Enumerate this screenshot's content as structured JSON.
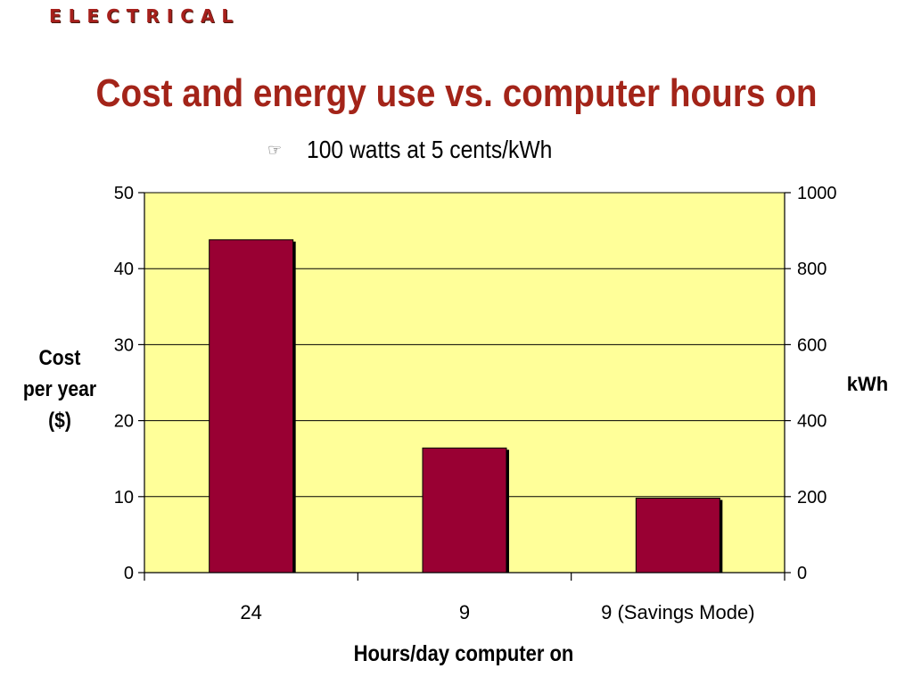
{
  "slide": {
    "section_tag": "ELECTRICAL",
    "title": "Cost and energy use vs. computer hours on",
    "bullet_icon": "pointing-hand-icon",
    "bullet_text": "100 watts at 5 cents/kWh"
  },
  "chart_data": {
    "type": "bar",
    "title": "",
    "categories": [
      "24",
      "9",
      "9 (Savings Mode)"
    ],
    "series": [
      {
        "values": [
          43.8,
          16.4,
          9.8
        ],
        "color": "#990033"
      }
    ],
    "xlabel": "Hours/day computer on",
    "ylabel": "Cost per year ($)",
    "ylabel_lines": [
      "Cost",
      "per year",
      "($)"
    ],
    "y2label": "kWh",
    "ylim": [
      0,
      50
    ],
    "y2lim": [
      0,
      1000
    ],
    "yticks": [
      "0",
      "10",
      "20",
      "30",
      "40",
      "50"
    ],
    "y2ticks": [
      "0",
      "200",
      "400",
      "600",
      "800",
      "1000"
    ],
    "plot_background": "#ffff99",
    "grid": true,
    "legend": "none"
  }
}
